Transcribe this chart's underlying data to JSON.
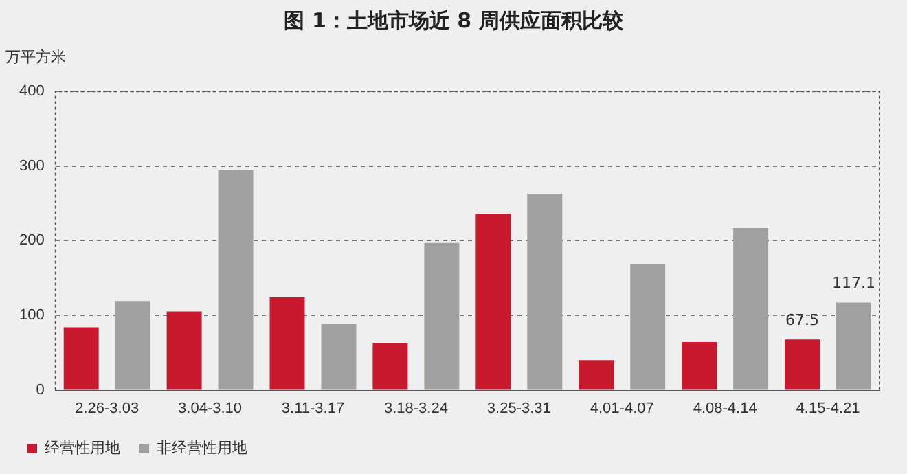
{
  "chart_data": {
    "type": "bar",
    "title": "图 1：土地市场近 8 周供应面积比较",
    "ylabel": "万平方米",
    "categories": [
      "2.26-3.03",
      "3.04-3.10",
      "3.11-3.17",
      "3.18-3.24",
      "3.25-3.31",
      "4.01-4.07",
      "4.08-4.14",
      "4.15-4.21"
    ],
    "series": [
      {
        "name": "经营性用地",
        "color": "#c8192f",
        "values": [
          84,
          105,
          124,
          63,
          236,
          40,
          64,
          67.5
        ],
        "value_labels": [
          null,
          null,
          null,
          null,
          null,
          null,
          null,
          "67.5"
        ]
      },
      {
        "name": "非经营性用地",
        "color": "#a0a0a0",
        "values": [
          119,
          295,
          88,
          197,
          263,
          169,
          217,
          117.1
        ],
        "value_labels": [
          null,
          null,
          null,
          null,
          null,
          null,
          null,
          "117.1"
        ]
      }
    ],
    "ylim": [
      0,
      400
    ],
    "yticks": [
      0,
      100,
      200,
      300,
      400
    ],
    "grid": "y",
    "legend": "bottom"
  }
}
